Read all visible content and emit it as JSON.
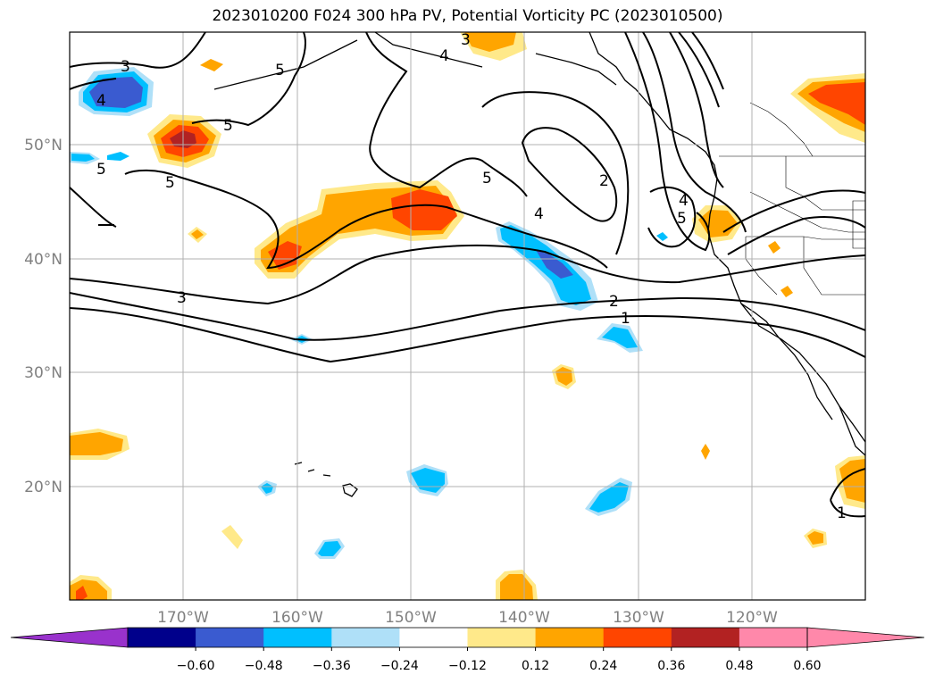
{
  "title": "2023010200 F024 300 hPa PV, Potential Vorticity PC (2023010500)",
  "lat_labels": [
    "50°N",
    "40°N",
    "30°N",
    "20°N"
  ],
  "lon_labels": [
    "170°W",
    "160°W",
    "150°W",
    "140°W",
    "130°W",
    "120°W"
  ],
  "colorbar": {
    "min_color": "#9932cc",
    "max_color": "#ff88aa",
    "bins": [
      {
        "color": "#00008b"
      },
      {
        "color": "#3a5bd0"
      },
      {
        "color": "#00bfff"
      },
      {
        "color": "#afe0f8"
      },
      {
        "color": "#ffffff"
      },
      {
        "color": "#ffe98a"
      },
      {
        "color": "#ffa500"
      },
      {
        "color": "#ff4500"
      },
      {
        "color": "#b22222"
      },
      {
        "color": "#ff88aa"
      }
    ],
    "tick_labels": [
      "−0.60",
      "−0.48",
      "−0.36",
      "−0.24",
      "−0.12",
      "0.12",
      "0.24",
      "0.36",
      "0.48",
      "0.60"
    ]
  },
  "contour_labels": [
    "3",
    "4",
    "5",
    "5",
    "5",
    "3",
    "5",
    "2",
    "4",
    "4",
    "5",
    "3",
    "4",
    "5",
    "2",
    "1",
    "1"
  ]
}
